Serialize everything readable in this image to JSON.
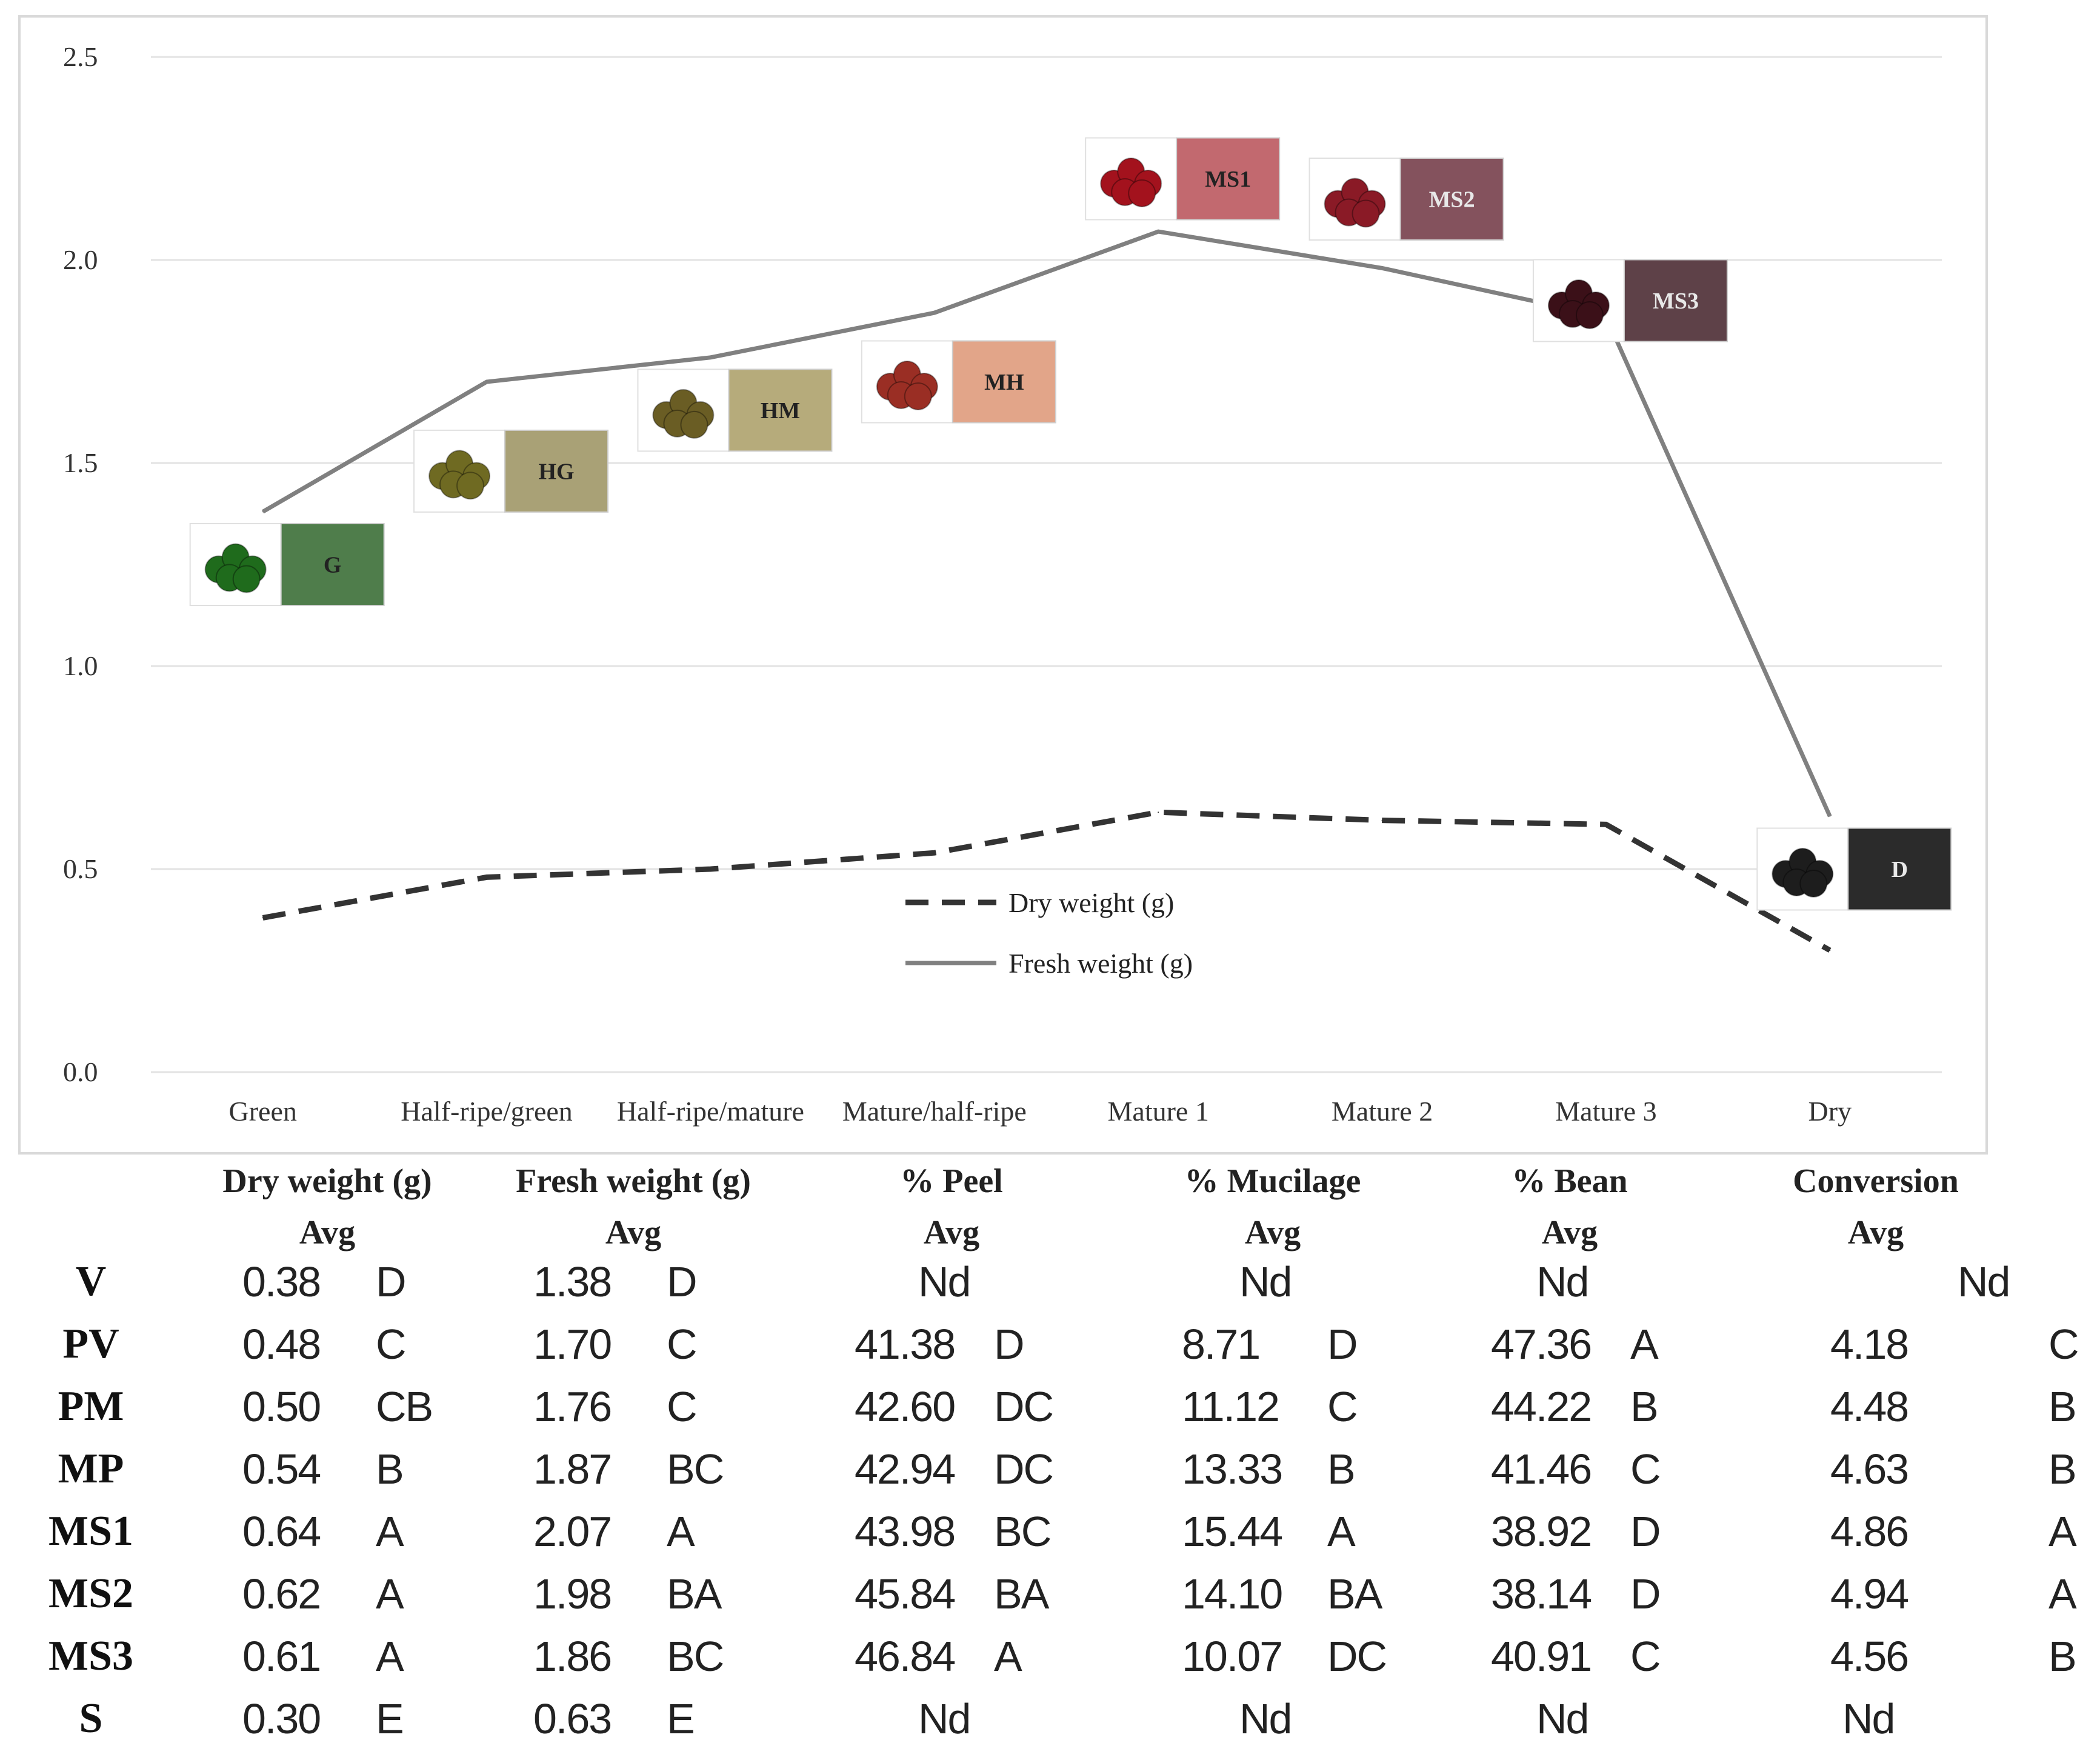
{
  "chart_data": {
    "type": "line",
    "categories": [
      "Green",
      "Half-ripe/green",
      "Half-ripe/mature",
      "Mature/half-ripe",
      "Mature 1",
      "Mature 2",
      "Mature 3",
      "Dry"
    ],
    "series": [
      {
        "name": "Dry weight (g)",
        "style": "dashed",
        "color": "#333333",
        "values": [
          0.38,
          0.48,
          0.5,
          0.54,
          0.64,
          0.62,
          0.61,
          0.3
        ]
      },
      {
        "name": "Fresh weight (g)",
        "style": "solid",
        "color": "#808080",
        "values": [
          1.38,
          1.7,
          1.76,
          1.87,
          2.07,
          1.98,
          1.86,
          0.63
        ]
      }
    ],
    "yticks": [
      "0.0",
      "0.5",
      "1.0",
      "1.5",
      "2.0",
      "2.5"
    ],
    "ylim": [
      0,
      2.5
    ],
    "grid": true,
    "legend_position": "center-bottom",
    "stage_labels": [
      {
        "label": "G",
        "color": "#4f7d4b",
        "anchor_value": 1.25,
        "category": 0
      },
      {
        "label": "HG",
        "color": "#a9a176",
        "anchor_value": 1.48,
        "category": 1
      },
      {
        "label": "HM",
        "color": "#b6ab7b",
        "anchor_value": 1.63,
        "category": 2
      },
      {
        "label": "MH",
        "color": "#e2a589",
        "anchor_value": 1.7,
        "category": 3
      },
      {
        "label": "MS1",
        "color": "#c2696f",
        "anchor_value": 2.2,
        "category": 4
      },
      {
        "label": "MS2",
        "color": "#84525d",
        "anchor_value": 2.15,
        "category": 5
      },
      {
        "label": "MS3",
        "color": "#5e4148",
        "anchor_value": 1.9,
        "category": 6
      },
      {
        "label": "D",
        "color": "#2b2b2b",
        "anchor_value": 0.5,
        "category": 7
      }
    ]
  },
  "table": {
    "headers": [
      {
        "title": "Dry weight (g)",
        "sub": "Avg"
      },
      {
        "title": "Fresh weight (g)",
        "sub": "Avg"
      },
      {
        "title": "% Peel",
        "sub": "Avg"
      },
      {
        "title": "% Mucilage",
        "sub": "Avg"
      },
      {
        "title": "% Bean",
        "sub": "Avg"
      },
      {
        "title": "Conversion",
        "sub": "Avg"
      }
    ],
    "rows": [
      {
        "label": "V",
        "cells": [
          [
            "0.38",
            "D"
          ],
          [
            "1.38",
            "D"
          ],
          [
            "Nd",
            ""
          ],
          [
            "Nd",
            ""
          ],
          [
            "Nd",
            ""
          ],
          [
            "Nd",
            ""
          ]
        ]
      },
      {
        "label": "PV",
        "cells": [
          [
            "0.48",
            "C"
          ],
          [
            "1.70",
            "C"
          ],
          [
            "41.38",
            "D"
          ],
          [
            "8.71",
            "D"
          ],
          [
            "47.36",
            "A"
          ],
          [
            "4.18",
            "C"
          ]
        ]
      },
      {
        "label": "PM",
        "cells": [
          [
            "0.50",
            "CB"
          ],
          [
            "1.76",
            "C"
          ],
          [
            "42.60",
            "DC"
          ],
          [
            "11.12",
            "C"
          ],
          [
            "44.22",
            "B"
          ],
          [
            "4.48",
            "B"
          ]
        ]
      },
      {
        "label": "MP",
        "cells": [
          [
            "0.54",
            "B"
          ],
          [
            "1.87",
            "BC"
          ],
          [
            "42.94",
            "DC"
          ],
          [
            "13.33",
            "B"
          ],
          [
            "41.46",
            "C"
          ],
          [
            "4.63",
            "B"
          ]
        ]
      },
      {
        "label": "MS1",
        "cells": [
          [
            "0.64",
            "A"
          ],
          [
            "2.07",
            "A"
          ],
          [
            "43.98",
            "BC"
          ],
          [
            "15.44",
            "A"
          ],
          [
            "38.92",
            "D"
          ],
          [
            "4.86",
            "A"
          ]
        ]
      },
      {
        "label": "MS2",
        "cells": [
          [
            "0.62",
            "A"
          ],
          [
            "1.98",
            "BA"
          ],
          [
            "45.84",
            "BA"
          ],
          [
            "14.10",
            "BA"
          ],
          [
            "38.14",
            "D"
          ],
          [
            "4.94",
            "A"
          ]
        ]
      },
      {
        "label": "MS3",
        "cells": [
          [
            "0.61",
            "A"
          ],
          [
            "1.86",
            "BC"
          ],
          [
            "46.84",
            "A"
          ],
          [
            "10.07",
            "DC"
          ],
          [
            "40.91",
            "C"
          ],
          [
            "4.56",
            "B"
          ]
        ]
      },
      {
        "label": "S",
        "cells": [
          [
            "0.30",
            "E"
          ],
          [
            "0.63",
            "E"
          ],
          [
            "Nd",
            ""
          ],
          [
            "Nd",
            ""
          ],
          [
            "Nd",
            ""
          ],
          [
            "Nd",
            ""
          ]
        ]
      }
    ]
  }
}
